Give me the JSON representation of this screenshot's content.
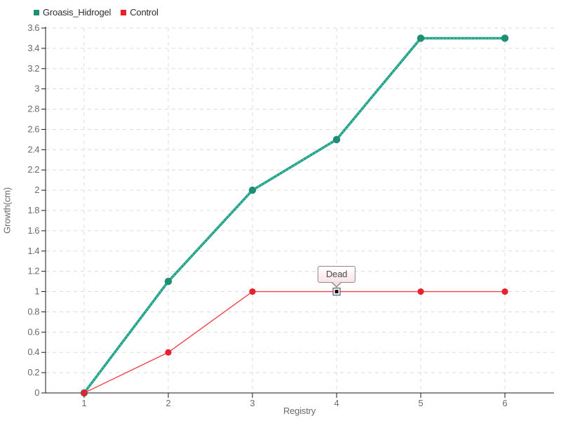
{
  "chart_data": {
    "type": "line",
    "title": "",
    "xlabel": "Registry",
    "ylabel": "Growth(cm)",
    "x": [
      1,
      2,
      3,
      4,
      5,
      6
    ],
    "xlim": [
      1,
      6
    ],
    "ylim": [
      0,
      3.6
    ],
    "ytick_step": 0.2,
    "grid": "dashed",
    "legend_position": "top-left",
    "series": [
      {
        "name": "Groasis_Hidrogel",
        "color": "#1fa287",
        "marker_color": "#1d8f73",
        "line_width": 3.5,
        "marker_radius": 5.2,
        "values": [
          0,
          1.1,
          2,
          2.5,
          3.5,
          3.5
        ]
      },
      {
        "name": "Control",
        "color": "#f4414d",
        "marker_color": "#e8212e",
        "line_width": 1.4,
        "marker_radius": 4.6,
        "values": [
          0,
          0.4,
          1,
          1,
          1,
          1
        ]
      }
    ],
    "annotation": {
      "text": "Dead",
      "series": "Control",
      "x": 4,
      "y": 1
    }
  },
  "colors": {
    "grid": "#dcdcdc",
    "axis": "#1a1a1a",
    "tick_label": "#6b6b6b",
    "background": "#ffffff"
  }
}
